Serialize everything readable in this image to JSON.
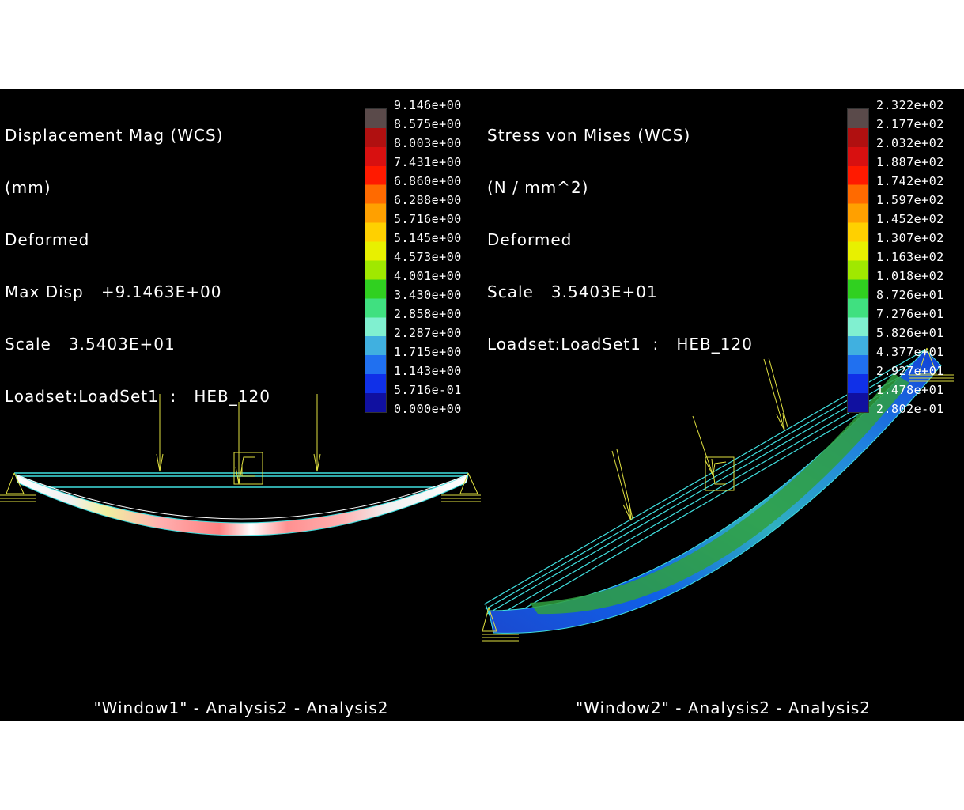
{
  "window1": {
    "title_lines": [
      "Displacement Mag (WCS)",
      "(mm)",
      "Deformed",
      "Max Disp   +9.1463E+00",
      "Scale   3.5403E+01",
      "Loadset:LoadSet1  :   HEB_120"
    ],
    "legend_values": [
      "9.146e+00",
      "8.575e+00",
      "8.003e+00",
      "7.431e+00",
      "6.860e+00",
      "6.288e+00",
      "5.716e+00",
      "5.145e+00",
      "4.573e+00",
      "4.001e+00",
      "3.430e+00",
      "2.858e+00",
      "2.287e+00",
      "1.715e+00",
      "1.143e+00",
      "5.716e-01",
      "0.000e+00"
    ],
    "footer": "\"Window1\"  -  Analysis2  -  Analysis2"
  },
  "window2": {
    "title_lines": [
      "Stress von Mises (WCS)",
      "(N / mm^2)",
      "Deformed",
      "Scale   3.5403E+01",
      "Loadset:LoadSet1  :   HEB_120"
    ],
    "legend_values": [
      "2.322e+02",
      "2.177e+02",
      "2.032e+02",
      "1.887e+02",
      "1.742e+02",
      "1.597e+02",
      "1.452e+02",
      "1.307e+02",
      "1.163e+02",
      "1.018e+02",
      "8.726e+01",
      "7.276e+01",
      "5.826e+01",
      "4.377e+01",
      "2.927e+01",
      "1.478e+01",
      "2.802e-01"
    ],
    "footer": "\"Window2\"  -  Analysis2  -  Analysis2"
  },
  "colors": {
    "legend_scale": [
      "#5a4a4a",
      "#b01010",
      "#d81010",
      "#ff1a00",
      "#ff6a00",
      "#ffa000",
      "#ffd000",
      "#e8f000",
      "#a0e800",
      "#30d020",
      "#40e080",
      "#80f0d0",
      "#40b0e0",
      "#2070f0",
      "#1030e8",
      "#1010a0"
    ],
    "wireframe": "#40e0e0",
    "load_arrow": "#e0e040",
    "constraint": "#e0e040"
  }
}
